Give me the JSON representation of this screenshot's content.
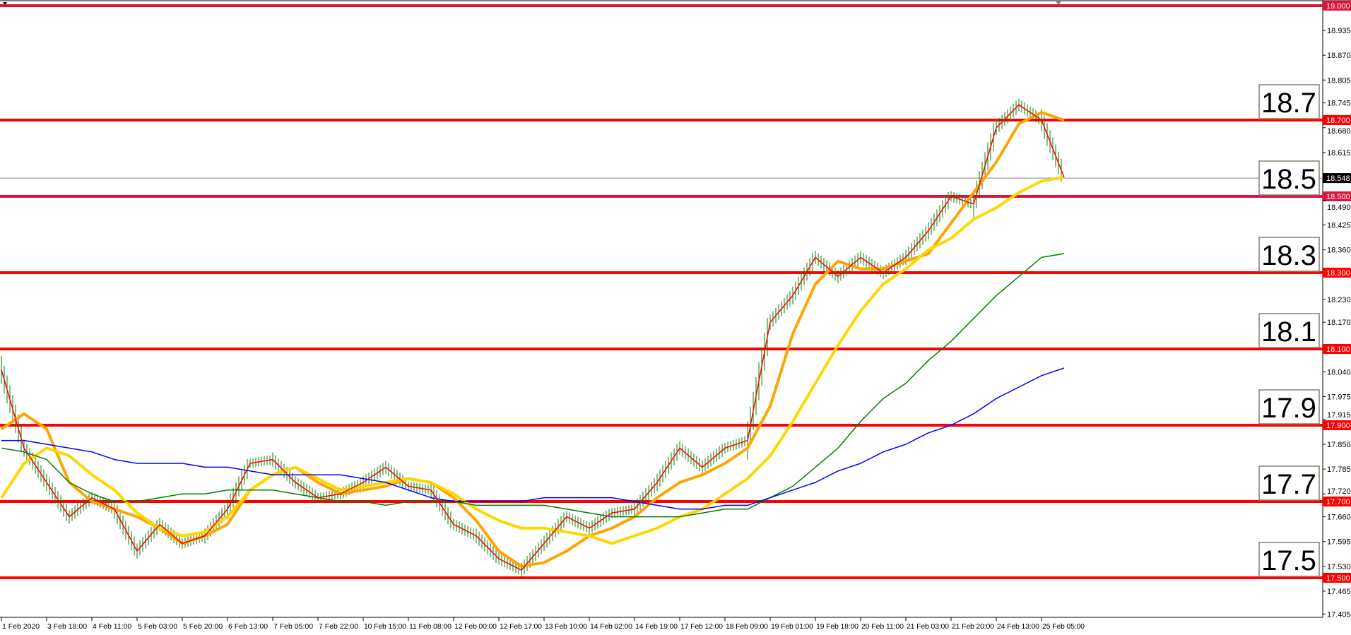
{
  "chart_data": {
    "type": "line",
    "title": "",
    "y_axis": {
      "range": [
        17.405,
        19.0
      ],
      "position": "right",
      "tick_labels": [
        "18.935",
        "18.870",
        "18.805",
        "18.745",
        "18.680",
        "18.615",
        "18.490",
        "18.425",
        "18.360",
        "18.230",
        "18.170",
        "18.040",
        "17.975",
        "17.915",
        "17.850",
        "17.785",
        "17.720",
        "17.660",
        "17.595",
        "17.530",
        "17.465",
        "17.405"
      ]
    },
    "x_axis": {
      "tick_labels": [
        "1 Feb 2020",
        "3 Feb 18:00",
        "4 Feb 11:00",
        "5 Feb 03:00",
        "5 Feb 20:00",
        "6 Feb 13:00",
        "7 Feb 05:00",
        "7 Feb 22:00",
        "10 Feb 15:00",
        "11 Feb 08:00",
        "12 Feb 00:00",
        "12 Feb 17:00",
        "13 Feb 10:00",
        "14 Feb 02:00",
        "14 Feb 19:00",
        "17 Feb 12:00",
        "18 Feb 09:00",
        "19 Feb 01:00",
        "19 Feb 18:00",
        "20 Feb 11:00",
        "21 Feb 03:00",
        "21 Feb 20:00",
        "24 Feb 13:00",
        "25 Feb 05:00"
      ]
    },
    "grid": false,
    "current_price": {
      "value": 18.548,
      "label": "18.548",
      "color": "#778899"
    },
    "levels": [
      {
        "value": 19.0,
        "label": "19.000",
        "color": "#dc143c",
        "box": ""
      },
      {
        "value": 18.7,
        "label": "18.700",
        "color": "#ff0000",
        "box": "18.7"
      },
      {
        "value": 18.5,
        "label": "18.500",
        "color": "#dc143c",
        "box": "18.5"
      },
      {
        "value": 18.3,
        "label": "18.300",
        "color": "#ff0000",
        "box": "18.3"
      },
      {
        "value": 18.1,
        "label": "18.100",
        "color": "#ff0000",
        "box": "18.1"
      },
      {
        "value": 17.9,
        "label": "17.900",
        "color": "#ff0000",
        "box": "17.9"
      },
      {
        "value": 17.7,
        "label": "17.700",
        "color": "#ff0000",
        "box": "17.7"
      },
      {
        "value": 17.5,
        "label": "17.500",
        "color": "#ff0000",
        "box": "17.5"
      }
    ],
    "price": {
      "color": "#008000",
      "fast_ma_color": "#ff0000",
      "values": [
        18.045,
        17.84,
        17.75,
        17.66,
        17.71,
        17.68,
        17.57,
        17.64,
        17.59,
        17.61,
        17.68,
        17.8,
        17.81,
        17.75,
        17.71,
        17.72,
        17.75,
        17.79,
        17.74,
        17.73,
        17.64,
        17.61,
        17.55,
        17.52,
        17.59,
        17.66,
        17.63,
        17.67,
        17.68,
        17.75,
        17.84,
        17.79,
        17.84,
        17.86,
        18.17,
        18.24,
        18.34,
        18.29,
        18.34,
        18.3,
        18.34,
        18.41,
        18.5,
        18.48,
        18.68,
        18.74,
        18.7,
        18.55
      ]
    },
    "series": [
      {
        "color": "#ffa500",
        "width": 4,
        "values": [
          17.89,
          17.93,
          17.89,
          17.75,
          17.7,
          17.68,
          17.66,
          17.63,
          17.59,
          17.61,
          17.64,
          17.73,
          17.77,
          17.79,
          17.75,
          17.72,
          17.73,
          17.74,
          17.76,
          17.75,
          17.71,
          17.65,
          17.57,
          17.53,
          17.54,
          17.57,
          17.61,
          17.63,
          17.66,
          17.71,
          17.75,
          17.77,
          17.8,
          17.84,
          17.95,
          18.14,
          18.27,
          18.33,
          18.31,
          18.31,
          18.33,
          18.35,
          18.43,
          18.51,
          18.59,
          18.69,
          18.72,
          18.7
        ]
      },
      {
        "color": "#ffd700",
        "width": 4,
        "values": [
          17.71,
          17.8,
          17.84,
          17.82,
          17.77,
          17.73,
          17.67,
          17.63,
          17.61,
          17.62,
          17.66,
          17.73,
          17.77,
          17.79,
          17.76,
          17.73,
          17.74,
          17.75,
          17.76,
          17.75,
          17.72,
          17.68,
          17.65,
          17.63,
          17.63,
          17.62,
          17.61,
          17.59,
          17.61,
          17.63,
          17.66,
          17.68,
          17.72,
          17.76,
          17.82,
          17.91,
          18.01,
          18.11,
          18.2,
          18.27,
          18.31,
          18.36,
          18.39,
          18.44,
          18.47,
          18.51,
          18.54,
          18.55
        ]
      },
      {
        "color": "#008000",
        "width": 1.5,
        "values": [
          17.84,
          17.83,
          17.81,
          17.75,
          17.72,
          17.7,
          17.7,
          17.71,
          17.72,
          17.72,
          17.73,
          17.73,
          17.73,
          17.72,
          17.71,
          17.7,
          17.7,
          17.69,
          17.7,
          17.7,
          17.7,
          17.69,
          17.69,
          17.69,
          17.69,
          17.68,
          17.67,
          17.66,
          17.66,
          17.66,
          17.66,
          17.67,
          17.68,
          17.68,
          17.71,
          17.74,
          17.79,
          17.84,
          17.91,
          17.97,
          18.01,
          18.07,
          18.12,
          18.18,
          18.24,
          18.29,
          18.34,
          18.35
        ]
      },
      {
        "color": "#0000ff",
        "width": 1.5,
        "values": [
          17.86,
          17.86,
          17.85,
          17.84,
          17.83,
          17.81,
          17.8,
          17.8,
          17.8,
          17.79,
          17.79,
          17.78,
          17.77,
          17.77,
          17.77,
          17.77,
          17.76,
          17.75,
          17.73,
          17.71,
          17.7,
          17.7,
          17.7,
          17.7,
          17.71,
          17.71,
          17.71,
          17.71,
          17.7,
          17.69,
          17.68,
          17.68,
          17.69,
          17.69,
          17.71,
          17.73,
          17.75,
          17.78,
          17.8,
          17.83,
          17.85,
          17.88,
          17.9,
          17.93,
          17.97,
          18.0,
          18.03,
          18.05
        ]
      }
    ]
  }
}
